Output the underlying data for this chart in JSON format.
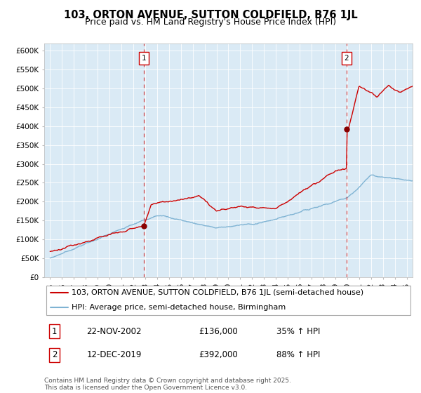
{
  "title": "103, ORTON AVENUE, SUTTON COLDFIELD, B76 1JL",
  "subtitle": "Price paid vs. HM Land Registry's House Price Index (HPI)",
  "ylabel_ticks": [
    "£0",
    "£50K",
    "£100K",
    "£150K",
    "£200K",
    "£250K",
    "£300K",
    "£350K",
    "£400K",
    "£450K",
    "£500K",
    "£550K",
    "£600K"
  ],
  "ytick_values": [
    0,
    50000,
    100000,
    150000,
    200000,
    250000,
    300000,
    350000,
    400000,
    450000,
    500000,
    550000,
    600000
  ],
  "ylim": [
    0,
    620000
  ],
  "xlim_start": 1994.5,
  "xlim_end": 2025.5,
  "background_color": "#daeaf5",
  "fig_bg_color": "#ffffff",
  "red_line_color": "#cc0000",
  "blue_line_color": "#7fb3d3",
  "vline_color": "#cc0000",
  "marker_color": "#880000",
  "transaction1_x": 2002.9,
  "transaction1_y": 136000,
  "transaction2_x": 2019.95,
  "transaction2_y": 392000,
  "legend_red_label": "103, ORTON AVENUE, SUTTON COLDFIELD, B76 1JL (semi-detached house)",
  "legend_blue_label": "HPI: Average price, semi-detached house, Birmingham",
  "table_row1": [
    "1",
    "22-NOV-2002",
    "£136,000",
    "35% ↑ HPI"
  ],
  "table_row2": [
    "2",
    "12-DEC-2019",
    "£392,000",
    "88% ↑ HPI"
  ],
  "footer": "Contains HM Land Registry data © Crown copyright and database right 2025.\nThis data is licensed under the Open Government Licence v3.0.",
  "title_fontsize": 10.5,
  "subtitle_fontsize": 9,
  "tick_fontsize": 7.5,
  "legend_fontsize": 8,
  "table_fontsize": 8.5,
  "footer_fontsize": 6.5
}
